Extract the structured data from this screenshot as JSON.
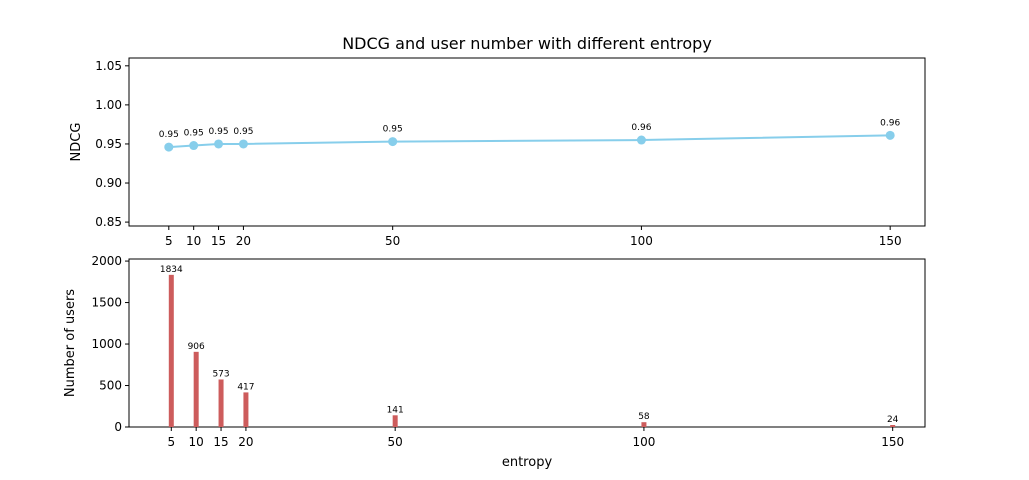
{
  "chart_data": [
    {
      "type": "line",
      "title": "NDCG and user number with different entropy",
      "xlabel": "",
      "ylabel": "NDCG",
      "x": [
        5,
        10,
        15,
        20,
        50,
        100,
        150
      ],
      "series": [
        {
          "values": [
            0.946,
            0.948,
            0.95,
            0.95,
            0.953,
            0.955,
            0.961
          ]
        }
      ],
      "data_labels": [
        "0.95",
        "0.95",
        "0.95",
        "0.95",
        "0.95",
        "0.96",
        "0.96"
      ],
      "xticks": [
        "5",
        "10",
        "15",
        "20",
        "50",
        "100",
        "150"
      ],
      "yticks": [
        "0.85",
        "0.90",
        "0.95",
        "1.00",
        "1.05"
      ],
      "ytick_values": [
        0.85,
        0.9,
        0.95,
        1.0,
        1.05
      ],
      "xlim": [
        -3,
        157
      ],
      "ylim": [
        0.845,
        1.06
      ],
      "grid": false,
      "color": "#87CEEB"
    },
    {
      "type": "bar",
      "title": "",
      "xlabel": "entropy",
      "ylabel": "Number of users",
      "categories": [
        "5",
        "10",
        "15",
        "20",
        "50",
        "100",
        "150"
      ],
      "x": [
        5,
        10,
        15,
        20,
        50,
        100,
        150
      ],
      "values": [
        1834,
        906,
        573,
        417,
        141,
        58,
        24
      ],
      "data_labels": [
        "1834",
        "906",
        "573",
        "417",
        "141",
        "58",
        "24"
      ],
      "xticks": [
        "5",
        "10",
        "15",
        "20",
        "50",
        "100",
        "150"
      ],
      "yticks": [
        "0",
        "500",
        "1000",
        "1500",
        "2000"
      ],
      "ytick_values": [
        0,
        500,
        1000,
        1500,
        2000
      ],
      "xlim": [
        -3,
        157
      ],
      "ylim": [
        0,
        2025
      ],
      "grid": false,
      "color": "#CD5C5C"
    }
  ]
}
